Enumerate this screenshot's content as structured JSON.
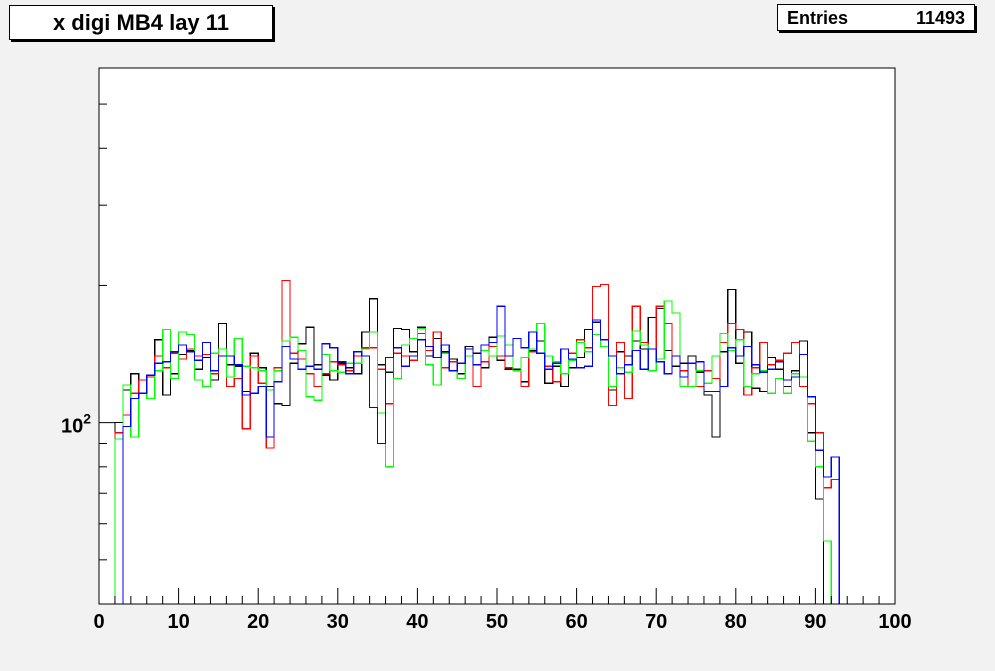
{
  "title": "x digi MB4 lay 11",
  "stats": {
    "entries_label": "Entries",
    "entries_value": "11493"
  },
  "chart_data": {
    "type": "histogram-step",
    "title": "x digi MB4 lay 11",
    "xlabel": "",
    "ylabel": "",
    "xlim": [
      0,
      100
    ],
    "ylim": [
      40,
      600
    ],
    "yscale": "log",
    "grid": false,
    "legend": "none",
    "x_ticks": [
      0,
      10,
      20,
      30,
      40,
      50,
      60,
      70,
      80,
      90,
      100
    ],
    "y_tick_labels": [
      {
        "value": 100,
        "label": "10^2"
      }
    ],
    "bin_width": 1,
    "series": [
      {
        "color": "#000000",
        "values": [
          40,
          40,
          100,
          118,
          128,
          116,
          127,
          152,
          115,
          128,
          141,
          144,
          131,
          139,
          124,
          165,
          134,
          133,
          117,
          142,
          132,
          120,
          110,
          109,
          135,
          149,
          162,
          134,
          127,
          124,
          135,
          132,
          128,
          158,
          187,
          134,
          129,
          161,
          160,
          143,
          162,
          140,
          153,
          143,
          138,
          128,
          147,
          142,
          132,
          154,
          137,
          131,
          131,
          123,
          144,
          151,
          122,
          133,
          120,
          132,
          139,
          160,
          166,
          152,
          118,
          143,
          140,
          151,
          145,
          170,
          178,
          144,
          133,
          135,
          140,
          129,
          115,
          93,
          143,
          196,
          135,
          158,
          119,
          117,
          139,
          131,
          120,
          130,
          151,
          95,
          68,
          40,
          40,
          40,
          40,
          40,
          40,
          40,
          40,
          40
        ]
      },
      {
        "color": "#ff0000",
        "values": [
          40,
          40,
          95,
          104,
          116,
          124,
          126,
          140,
          132,
          142,
          138,
          145,
          140,
          141,
          128,
          145,
          120,
          125,
          97,
          140,
          122,
          88,
          132,
          205,
          142,
          138,
          128,
          120,
          128,
          136,
          134,
          130,
          140,
          146,
          146,
          131,
          110,
          142,
          140,
          137,
          157,
          144,
          158,
          132,
          136,
          125,
          140,
          120,
          136,
          147,
          140,
          132,
          130,
          120,
          143,
          142,
          133,
          123,
          128,
          142,
          152,
          146,
          199,
          201,
          109,
          150,
          113,
          180,
          150,
          130,
          180,
          165,
          140,
          130,
          120,
          120,
          130,
          125,
          150,
          165,
          160,
          115,
          132,
          150,
          134,
          137,
          142,
          150,
          120,
          110,
          95,
          72,
          75,
          40,
          40,
          40,
          40,
          40,
          40,
          40
        ]
      },
      {
        "color": "#00ff00",
        "values": [
          40,
          40,
          92,
          121,
          93,
          116,
          113,
          130,
          160,
          125,
          158,
          156,
          124,
          120,
          142,
          145,
          126,
          153,
          133,
          132,
          130,
          118,
          130,
          151,
          154,
          144,
          114,
          112,
          141,
          130,
          129,
          135,
          135,
          145,
          158,
          105,
          80,
          125,
          148,
          153,
          161,
          134,
          121,
          142,
          130,
          125,
          140,
          134,
          144,
          140,
          155,
          148,
          130,
          139,
          145,
          165,
          140,
          136,
          128,
          137,
          150,
          143,
          156,
          147,
          120,
          132,
          129,
          159,
          148,
          130,
          138,
          185,
          174,
          120,
          120,
          130,
          122,
          140,
          157,
          144,
          152,
          120,
          128,
          130,
          116,
          125,
          116,
          128,
          126,
          91,
          80,
          55,
          40,
          40,
          40,
          40,
          40,
          40,
          40,
          40
        ]
      },
      {
        "color": "#0000ff",
        "values": [
          40,
          40,
          40,
          98,
          113,
          116,
          127,
          135,
          136,
          143,
          148,
          143,
          137,
          150,
          130,
          140,
          140,
          134,
          115,
          116,
          120,
          93,
          123,
          147,
          138,
          131,
          133,
          131,
          149,
          146,
          136,
          128,
          143,
          140,
          108,
          90,
          139,
          146,
          133,
          140,
          152,
          147,
          139,
          148,
          130,
          135,
          145,
          134,
          148,
          150,
          180,
          140,
          153,
          146,
          158,
          142,
          131,
          135,
          145,
          138,
          132,
          133,
          168,
          152,
          140,
          128,
          134,
          144,
          131,
          145,
          136,
          128,
          140,
          126,
          135,
          136,
          117,
          117,
          120,
          146,
          140,
          147,
          134,
          129,
          131,
          136,
          124,
          126,
          141,
          114,
          87,
          76,
          84,
          40,
          40,
          40,
          40,
          40,
          40,
          40
        ]
      }
    ]
  }
}
